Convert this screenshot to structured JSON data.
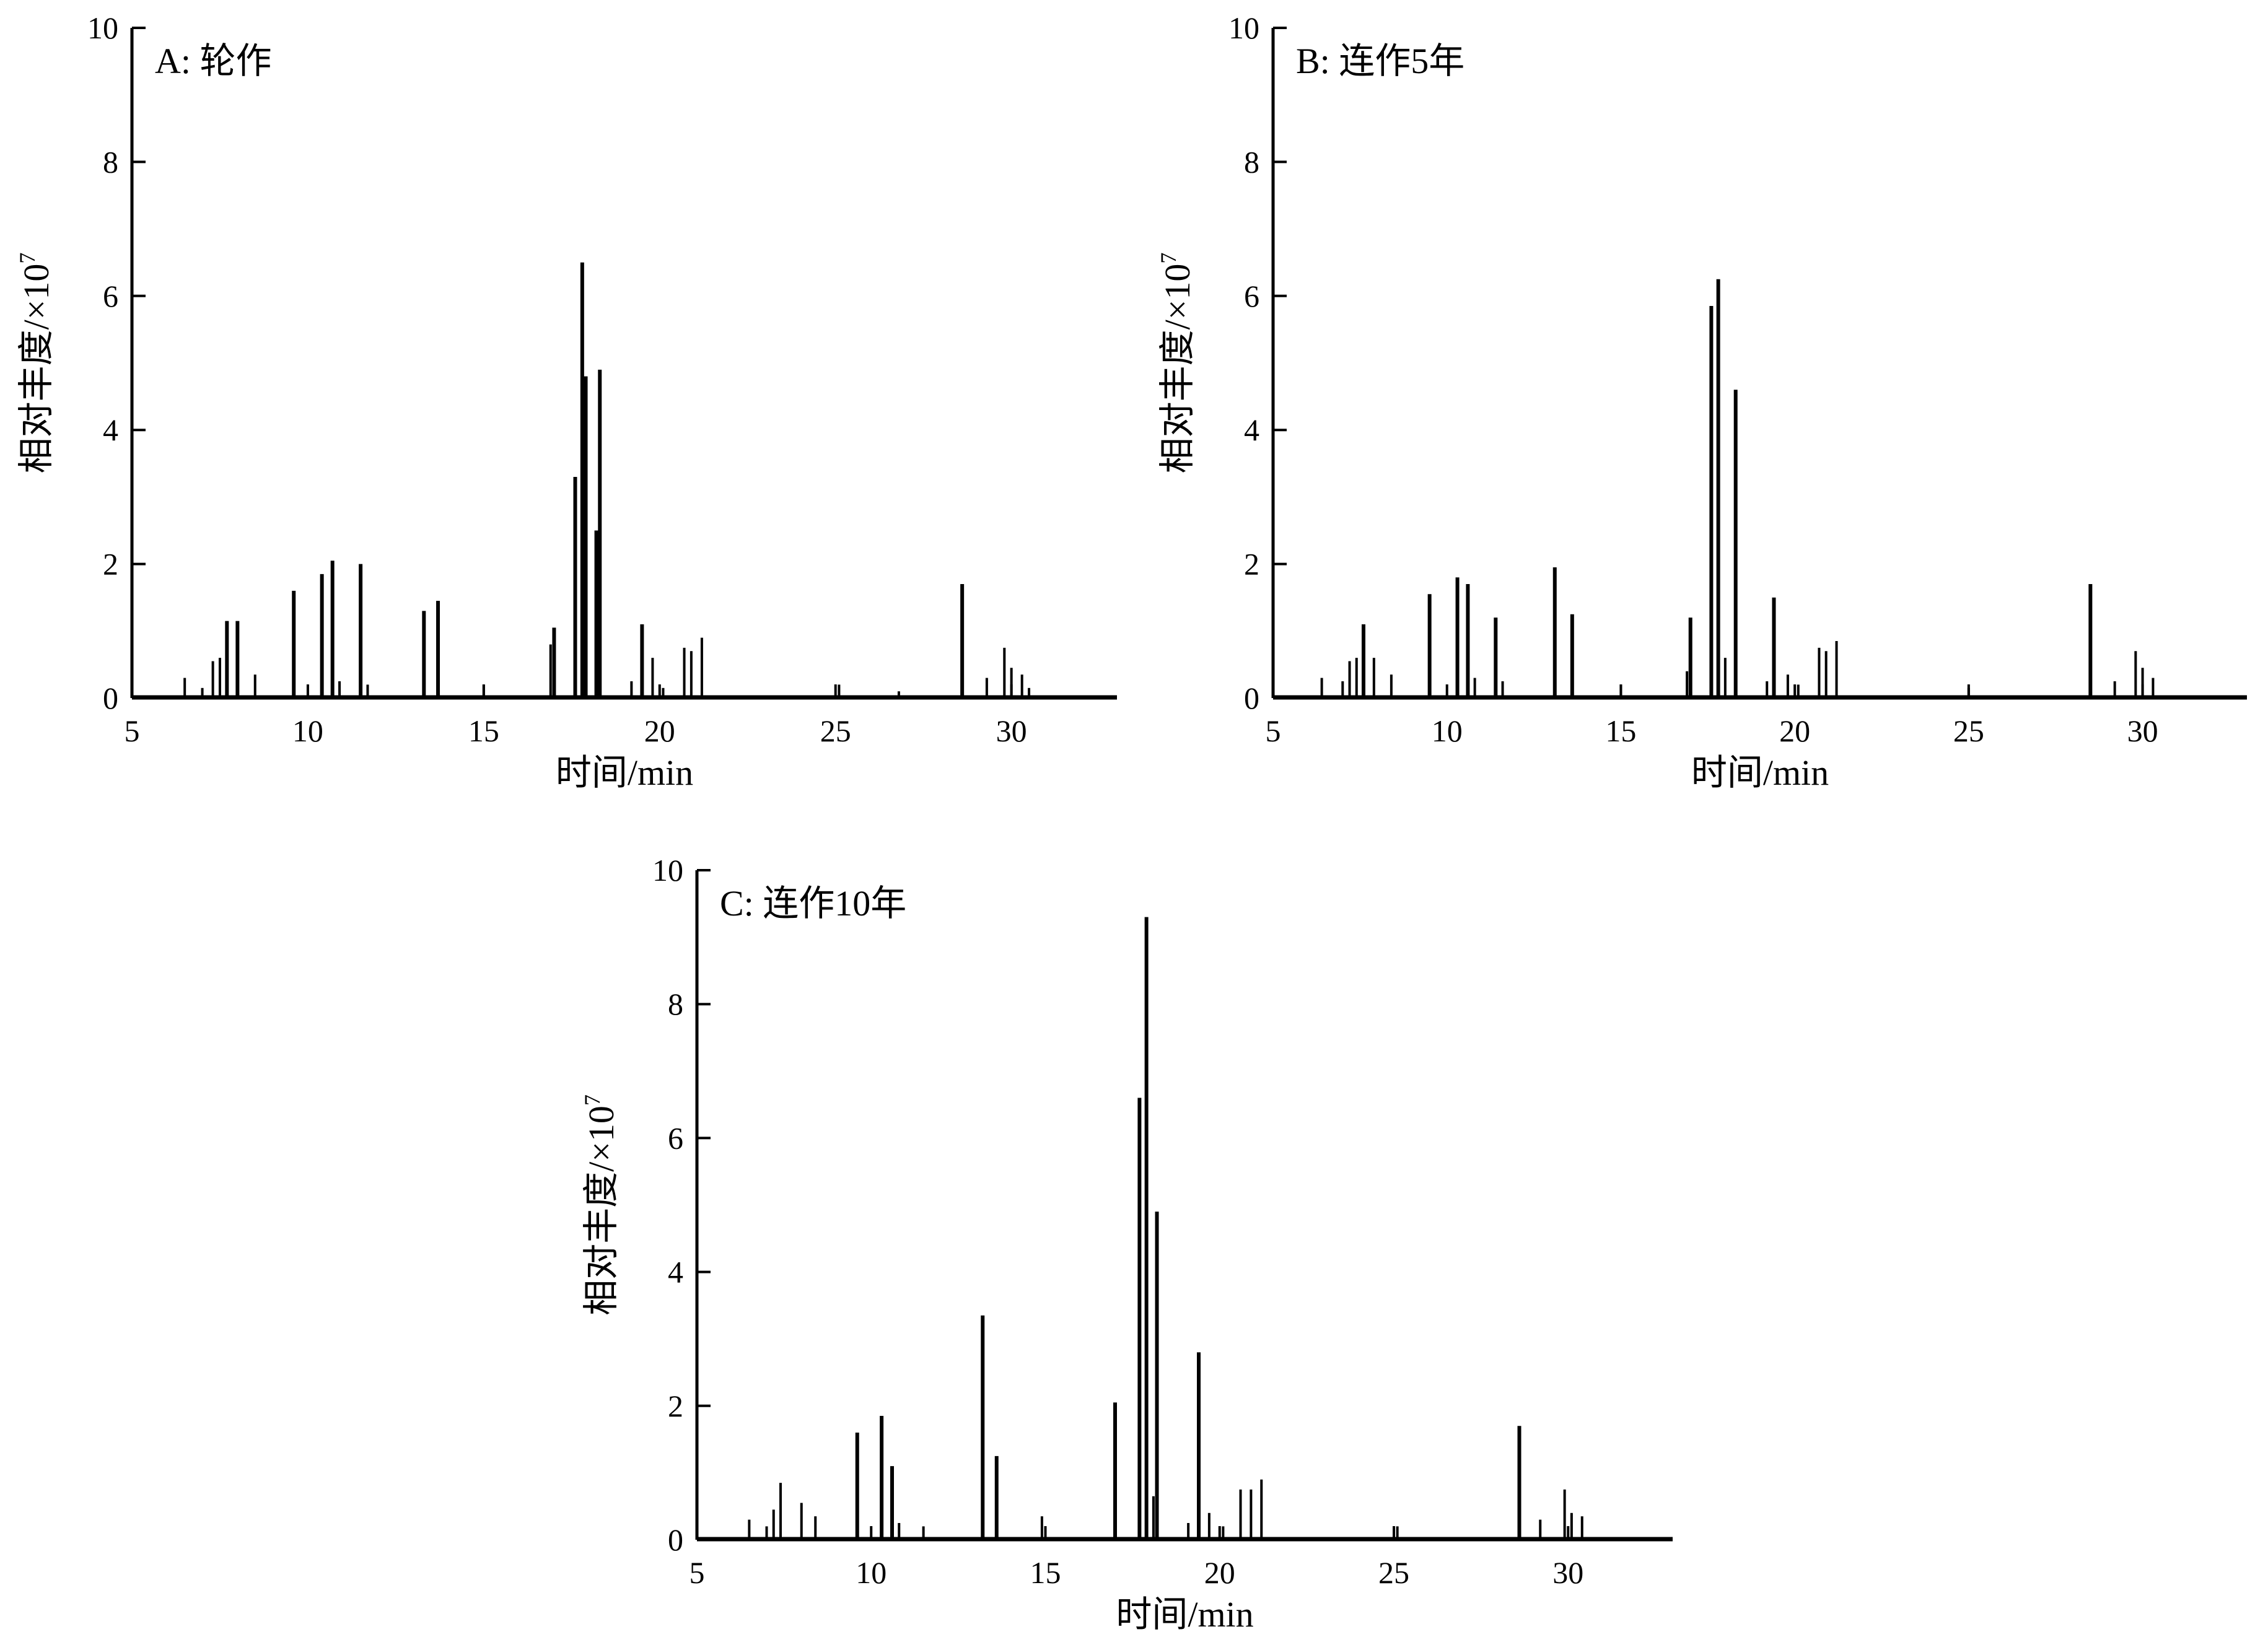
{
  "chart_data": [
    {
      "type": "line",
      "panel_label": "A: 轮作",
      "xlabel": "时间/min",
      "ylabel": "相对丰度/×10",
      "ylabel_sup": "7",
      "xlim": [
        5,
        33
      ],
      "ylim": [
        0,
        10
      ],
      "xticks": [
        5,
        10,
        15,
        20,
        25,
        30
      ],
      "yticks": [
        0,
        2,
        4,
        6,
        8,
        10
      ],
      "grid": false,
      "peaks": [
        [
          6.5,
          0.3
        ],
        [
          7.0,
          0.15
        ],
        [
          7.3,
          0.55
        ],
        [
          7.5,
          0.6
        ],
        [
          7.7,
          1.15
        ],
        [
          8.0,
          1.15
        ],
        [
          8.5,
          0.35
        ],
        [
          9.6,
          1.6
        ],
        [
          10.4,
          1.85
        ],
        [
          10.7,
          2.05
        ],
        [
          10.9,
          0.25
        ],
        [
          11.5,
          2.0
        ],
        [
          11.7,
          0.2
        ],
        [
          13.3,
          1.3
        ],
        [
          13.7,
          1.45
        ],
        [
          15.0,
          0.2
        ],
        [
          16.9,
          0.8
        ],
        [
          17.0,
          1.05
        ],
        [
          17.6,
          3.3
        ],
        [
          17.8,
          6.5
        ],
        [
          17.9,
          4.8
        ],
        [
          18.2,
          2.5
        ],
        [
          18.3,
          4.9
        ],
        [
          19.2,
          0.25
        ],
        [
          19.5,
          1.1
        ],
        [
          19.8,
          0.6
        ],
        [
          20.1,
          0.15
        ],
        [
          20.7,
          0.75
        ],
        [
          20.9,
          0.7
        ],
        [
          21.2,
          0.9
        ],
        [
          25.1,
          0.2
        ],
        [
          26.8,
          0.1
        ],
        [
          28.6,
          1.7
        ],
        [
          29.3,
          0.3
        ],
        [
          29.8,
          0.75
        ],
        [
          30.0,
          0.45
        ],
        [
          30.3,
          0.35
        ],
        [
          30.5,
          0.15
        ]
      ]
    },
    {
      "type": "line",
      "panel_label": "B: 连作5年",
      "xlabel": "时间/min",
      "ylabel": "相对丰度/×10",
      "ylabel_sup": "7",
      "xlim": [
        5,
        33
      ],
      "ylim": [
        0,
        10
      ],
      "xticks": [
        5,
        10,
        15,
        20,
        25,
        30
      ],
      "yticks": [
        0,
        2,
        4,
        6,
        8,
        10
      ],
      "grid": false,
      "peaks": [
        [
          6.4,
          0.3
        ],
        [
          7.0,
          0.25
        ],
        [
          7.2,
          0.55
        ],
        [
          7.4,
          0.6
        ],
        [
          7.6,
          1.1
        ],
        [
          7.9,
          0.6
        ],
        [
          8.4,
          0.35
        ],
        [
          9.5,
          1.55
        ],
        [
          10.3,
          1.8
        ],
        [
          10.6,
          1.7
        ],
        [
          10.8,
          0.3
        ],
        [
          11.4,
          1.2
        ],
        [
          11.6,
          0.25
        ],
        [
          13.1,
          1.95
        ],
        [
          13.6,
          1.25
        ],
        [
          15.0,
          0.2
        ],
        [
          16.9,
          0.4
        ],
        [
          17.0,
          1.2
        ],
        [
          17.6,
          5.85
        ],
        [
          17.8,
          6.25
        ],
        [
          18.0,
          0.6
        ],
        [
          18.3,
          4.6
        ],
        [
          19.2,
          0.25
        ],
        [
          19.4,
          1.5
        ],
        [
          19.8,
          0.35
        ],
        [
          20.1,
          0.2
        ],
        [
          20.7,
          0.75
        ],
        [
          20.9,
          0.7
        ],
        [
          21.2,
          0.85
        ],
        [
          25.0,
          0.15
        ],
        [
          28.5,
          1.7
        ],
        [
          29.2,
          0.25
        ],
        [
          29.8,
          0.7
        ],
        [
          30.0,
          0.45
        ],
        [
          30.3,
          0.3
        ]
      ]
    },
    {
      "type": "line",
      "panel_label": "C: 连作10年",
      "xlabel": "时间/min",
      "ylabel": "相对丰度/×10",
      "ylabel_sup": "7",
      "xlim": [
        5,
        33
      ],
      "ylim": [
        0,
        10
      ],
      "xticks": [
        5,
        10,
        15,
        20,
        25,
        30
      ],
      "yticks": [
        0,
        2,
        4,
        6,
        8,
        10
      ],
      "grid": false,
      "peaks": [
        [
          6.5,
          0.3
        ],
        [
          7.0,
          0.2
        ],
        [
          7.2,
          0.45
        ],
        [
          7.4,
          0.85
        ],
        [
          8.0,
          0.55
        ],
        [
          8.4,
          0.35
        ],
        [
          9.6,
          1.6
        ],
        [
          10.3,
          1.85
        ],
        [
          10.6,
          1.1
        ],
        [
          10.8,
          0.25
        ],
        [
          11.5,
          0.2
        ],
        [
          13.2,
          3.35
        ],
        [
          13.6,
          1.25
        ],
        [
          14.9,
          0.35
        ],
        [
          17.0,
          2.05
        ],
        [
          17.7,
          6.6
        ],
        [
          17.9,
          9.3
        ],
        [
          18.1,
          0.65
        ],
        [
          18.2,
          4.9
        ],
        [
          19.1,
          0.25
        ],
        [
          19.4,
          2.8
        ],
        [
          19.7,
          0.4
        ],
        [
          20.1,
          0.2
        ],
        [
          20.6,
          0.75
        ],
        [
          20.9,
          0.75
        ],
        [
          21.2,
          0.9
        ],
        [
          25.1,
          0.2
        ],
        [
          28.6,
          1.7
        ],
        [
          29.2,
          0.3
        ],
        [
          29.9,
          0.75
        ],
        [
          30.1,
          0.4
        ],
        [
          30.4,
          0.35
        ]
      ]
    }
  ]
}
